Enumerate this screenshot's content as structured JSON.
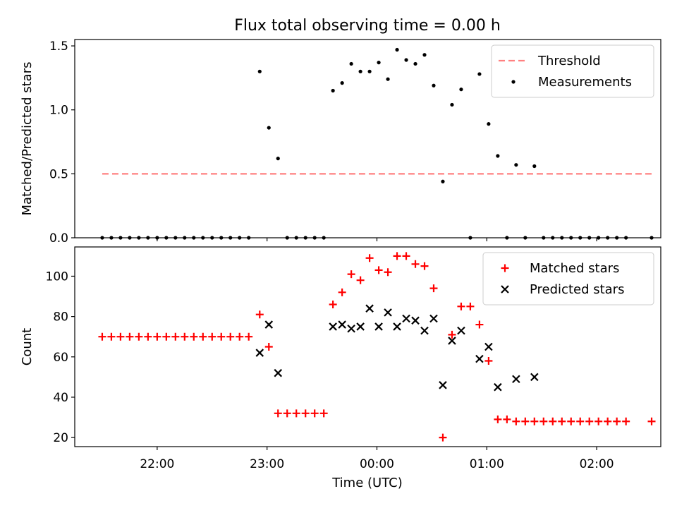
{
  "figure": {
    "title": "Flux total observing time = 0.00 h",
    "xlabel": "Time (UTC)"
  },
  "chart_data": [
    {
      "type": "scatter",
      "ylabel": "Matched/Predicted stars",
      "ylim": [
        0,
        1.55
      ],
      "yticks": [
        0.0,
        0.5,
        1.0,
        1.5
      ],
      "ytick_labels": [
        "0.0",
        "0.5",
        "1.0",
        "1.5"
      ],
      "legend_position": "top-right",
      "series": [
        {
          "name": "Threshold",
          "kind": "dashed-line",
          "color": "#ff8080",
          "points": [
            [
              "21:30",
              0.5
            ],
            [
              "02:30",
              0.5
            ]
          ]
        },
        {
          "name": "Measurements",
          "kind": "dot",
          "color": "#000000",
          "points": [
            [
              "21:30",
              0.0
            ],
            [
              "21:35",
              0.0
            ],
            [
              "21:40",
              0.0
            ],
            [
              "21:45",
              0.0
            ],
            [
              "21:50",
              0.0
            ],
            [
              "21:55",
              0.0
            ],
            [
              "22:00",
              0.0
            ],
            [
              "22:05",
              0.0
            ],
            [
              "22:10",
              0.0
            ],
            [
              "22:15",
              0.0
            ],
            [
              "22:20",
              0.0
            ],
            [
              "22:25",
              0.0
            ],
            [
              "22:30",
              0.0
            ],
            [
              "22:35",
              0.0
            ],
            [
              "22:40",
              0.0
            ],
            [
              "22:45",
              0.0
            ],
            [
              "22:50",
              0.0
            ],
            [
              "22:56",
              1.3
            ],
            [
              "23:01",
              0.86
            ],
            [
              "23:06",
              0.62
            ],
            [
              "23:11",
              0.0
            ],
            [
              "23:16",
              0.0
            ],
            [
              "23:21",
              0.0
            ],
            [
              "23:26",
              0.0
            ],
            [
              "23:31",
              0.0
            ],
            [
              "23:36",
              1.15
            ],
            [
              "23:41",
              1.21
            ],
            [
              "23:46",
              1.36
            ],
            [
              "23:51",
              1.3
            ],
            [
              "23:56",
              1.3
            ],
            [
              "00:01",
              1.37
            ],
            [
              "00:06",
              1.24
            ],
            [
              "00:11",
              1.47
            ],
            [
              "00:16",
              1.39
            ],
            [
              "00:21",
              1.36
            ],
            [
              "00:26",
              1.43
            ],
            [
              "00:31",
              1.19
            ],
            [
              "00:36",
              0.44
            ],
            [
              "00:41",
              1.04
            ],
            [
              "00:46",
              1.16
            ],
            [
              "00:51",
              0.0
            ],
            [
              "00:56",
              1.28
            ],
            [
              "01:01",
              0.89
            ],
            [
              "01:06",
              0.64
            ],
            [
              "01:11",
              0.0
            ],
            [
              "01:16",
              0.57
            ],
            [
              "01:21",
              0.0
            ],
            [
              "01:26",
              0.56
            ],
            [
              "01:31",
              0.0
            ],
            [
              "01:36",
              0.0
            ],
            [
              "01:41",
              0.0
            ],
            [
              "01:46",
              0.0
            ],
            [
              "01:51",
              0.0
            ],
            [
              "01:56",
              0.0
            ],
            [
              "02:01",
              0.0
            ],
            [
              "02:06",
              0.0
            ],
            [
              "02:11",
              0.0
            ],
            [
              "02:16",
              0.0
            ],
            [
              "02:30",
              0.0
            ]
          ]
        }
      ]
    },
    {
      "type": "scatter",
      "ylabel": "Count",
      "ylim": [
        15.5,
        114.5
      ],
      "yticks": [
        20,
        40,
        60,
        80,
        100
      ],
      "ytick_labels": [
        "20",
        "40",
        "60",
        "80",
        "100"
      ],
      "xlim": [
        "21:15",
        "02:35"
      ],
      "xticks": [
        "22:00",
        "23:00",
        "00:00",
        "01:00",
        "02:00"
      ],
      "xtick_labels": [
        "22:00",
        "23:00",
        "00:00",
        "01:00",
        "02:00"
      ],
      "legend_position": "top-right",
      "series": [
        {
          "name": "Matched stars",
          "kind": "plus",
          "color": "#ff0000",
          "points": [
            [
              "21:30",
              70
            ],
            [
              "21:35",
              70
            ],
            [
              "21:40",
              70
            ],
            [
              "21:45",
              70
            ],
            [
              "21:50",
              70
            ],
            [
              "21:55",
              70
            ],
            [
              "22:00",
              70
            ],
            [
              "22:05",
              70
            ],
            [
              "22:10",
              70
            ],
            [
              "22:15",
              70
            ],
            [
              "22:20",
              70
            ],
            [
              "22:25",
              70
            ],
            [
              "22:30",
              70
            ],
            [
              "22:35",
              70
            ],
            [
              "22:40",
              70
            ],
            [
              "22:45",
              70
            ],
            [
              "22:50",
              70
            ],
            [
              "22:56",
              81
            ],
            [
              "23:01",
              65
            ],
            [
              "23:06",
              32
            ],
            [
              "23:11",
              32
            ],
            [
              "23:16",
              32
            ],
            [
              "23:21",
              32
            ],
            [
              "23:26",
              32
            ],
            [
              "23:31",
              32
            ],
            [
              "23:36",
              86
            ],
            [
              "23:41",
              92
            ],
            [
              "23:46",
              101
            ],
            [
              "23:51",
              98
            ],
            [
              "23:56",
              109
            ],
            [
              "00:01",
              103
            ],
            [
              "00:06",
              102
            ],
            [
              "00:11",
              110
            ],
            [
              "00:16",
              110
            ],
            [
              "00:21",
              106
            ],
            [
              "00:26",
              105
            ],
            [
              "00:31",
              94
            ],
            [
              "00:36",
              20
            ],
            [
              "00:41",
              71
            ],
            [
              "00:46",
              85
            ],
            [
              "00:51",
              85
            ],
            [
              "00:56",
              76
            ],
            [
              "01:01",
              58
            ],
            [
              "01:06",
              29
            ],
            [
              "01:11",
              29
            ],
            [
              "01:16",
              28
            ],
            [
              "01:21",
              28
            ],
            [
              "01:26",
              28
            ],
            [
              "01:31",
              28
            ],
            [
              "01:36",
              28
            ],
            [
              "01:41",
              28
            ],
            [
              "01:46",
              28
            ],
            [
              "01:51",
              28
            ],
            [
              "01:56",
              28
            ],
            [
              "02:01",
              28
            ],
            [
              "02:06",
              28
            ],
            [
              "02:11",
              28
            ],
            [
              "02:16",
              28
            ],
            [
              "02:30",
              28
            ]
          ]
        },
        {
          "name": "Predicted stars",
          "kind": "x",
          "color": "#000000",
          "points": [
            [
              "22:56",
              62
            ],
            [
              "23:01",
              76
            ],
            [
              "23:06",
              52
            ],
            [
              "23:36",
              75
            ],
            [
              "23:41",
              76
            ],
            [
              "23:46",
              74
            ],
            [
              "23:51",
              75
            ],
            [
              "23:56",
              84
            ],
            [
              "00:01",
              75
            ],
            [
              "00:06",
              82
            ],
            [
              "00:11",
              75
            ],
            [
              "00:16",
              79
            ],
            [
              "00:21",
              78
            ],
            [
              "00:26",
              73
            ],
            [
              "00:31",
              79
            ],
            [
              "00:36",
              46
            ],
            [
              "00:41",
              68
            ],
            [
              "00:46",
              73
            ],
            [
              "00:56",
              59
            ],
            [
              "01:01",
              65
            ],
            [
              "01:06",
              45
            ],
            [
              "01:16",
              49
            ],
            [
              "01:26",
              50
            ]
          ]
        }
      ]
    }
  ]
}
